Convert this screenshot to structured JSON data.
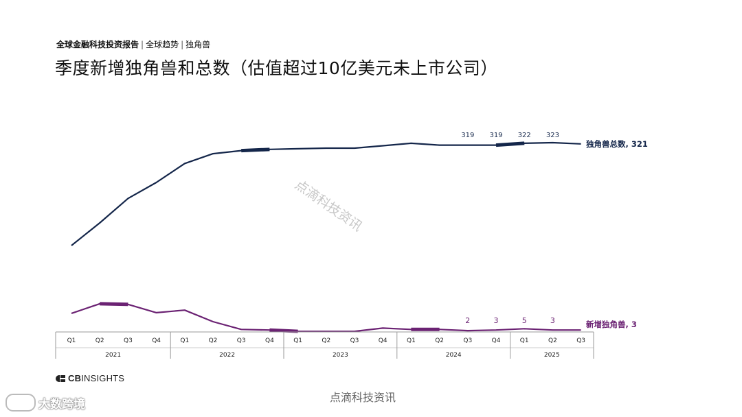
{
  "header": {
    "breadcrumb": [
      {
        "label": "全球金融科技投资报告",
        "strong": true
      },
      {
        "label": "全球趋势",
        "strong": false
      },
      {
        "label": "独角兽",
        "strong": false
      }
    ],
    "separator": "|",
    "title": "季度新增独角兽和总数（估值超过10亿美元未上市公司）"
  },
  "chart_data": {
    "type": "line",
    "title": "季度新增独角兽和总数（估值超过10亿美元未上市公司）",
    "x": [
      "2021 Q1",
      "2021 Q2",
      "2021 Q3",
      "2021 Q4",
      "2022 Q1",
      "2022 Q2",
      "2022 Q3",
      "2022 Q4",
      "2023 Q1",
      "2023 Q2",
      "2023 Q3",
      "2023 Q4",
      "2024 Q1",
      "2024 Q2",
      "2024 Q3",
      "2024 Q4",
      "2025 Q1",
      "2025 Q2",
      "2025 Q3"
    ],
    "quarter_labels": [
      "Q1",
      "Q2",
      "Q3",
      "Q4",
      "Q1",
      "Q2",
      "Q3",
      "Q4",
      "Q1",
      "Q2",
      "Q3",
      "Q4",
      "Q1",
      "Q2",
      "Q3",
      "Q4",
      "Q1",
      "Q2",
      "Q3"
    ],
    "years": [
      {
        "label": "2021",
        "quarters": 4
      },
      {
        "label": "2022",
        "quarters": 4
      },
      {
        "label": "2023",
        "quarters": 4
      },
      {
        "label": "2024",
        "quarters": 4
      },
      {
        "label": "2025",
        "quarters": 3
      }
    ],
    "series": [
      {
        "name": "独角兽总数",
        "end_label": "独角兽总数, 321",
        "color": "#14264a",
        "values": [
          155,
          192,
          232,
          258,
          289,
          305,
          310,
          312,
          313,
          314,
          314,
          318,
          322,
          319,
          319,
          319,
          322,
          323,
          321
        ],
        "data_labels": {
          "14": "319",
          "15": "319",
          "16": "322",
          "17": "323"
        },
        "highlight_segments": [
          [
            6,
            7
          ],
          [
            15,
            16
          ]
        ]
      },
      {
        "name": "新增独角兽",
        "end_label": "新增独角兽, 3",
        "color": "#6b2273",
        "values": [
          29,
          44,
          43,
          30,
          34,
          16,
          4,
          3,
          1,
          1,
          1,
          6,
          4,
          4,
          2,
          3,
          5,
          3,
          3
        ],
        "data_labels": {
          "14": "2",
          "15": "3",
          "16": "5",
          "17": "3"
        },
        "highlight_segments": [
          [
            1,
            2
          ],
          [
            7,
            8
          ],
          [
            12,
            13
          ]
        ]
      }
    ]
  },
  "brand": {
    "bold": "CB",
    "rest": "INSIGHTS"
  },
  "watermarks": {
    "center": "点滴科技资讯",
    "bottom": "点滴科技资讯",
    "corner": "大数跨境"
  }
}
